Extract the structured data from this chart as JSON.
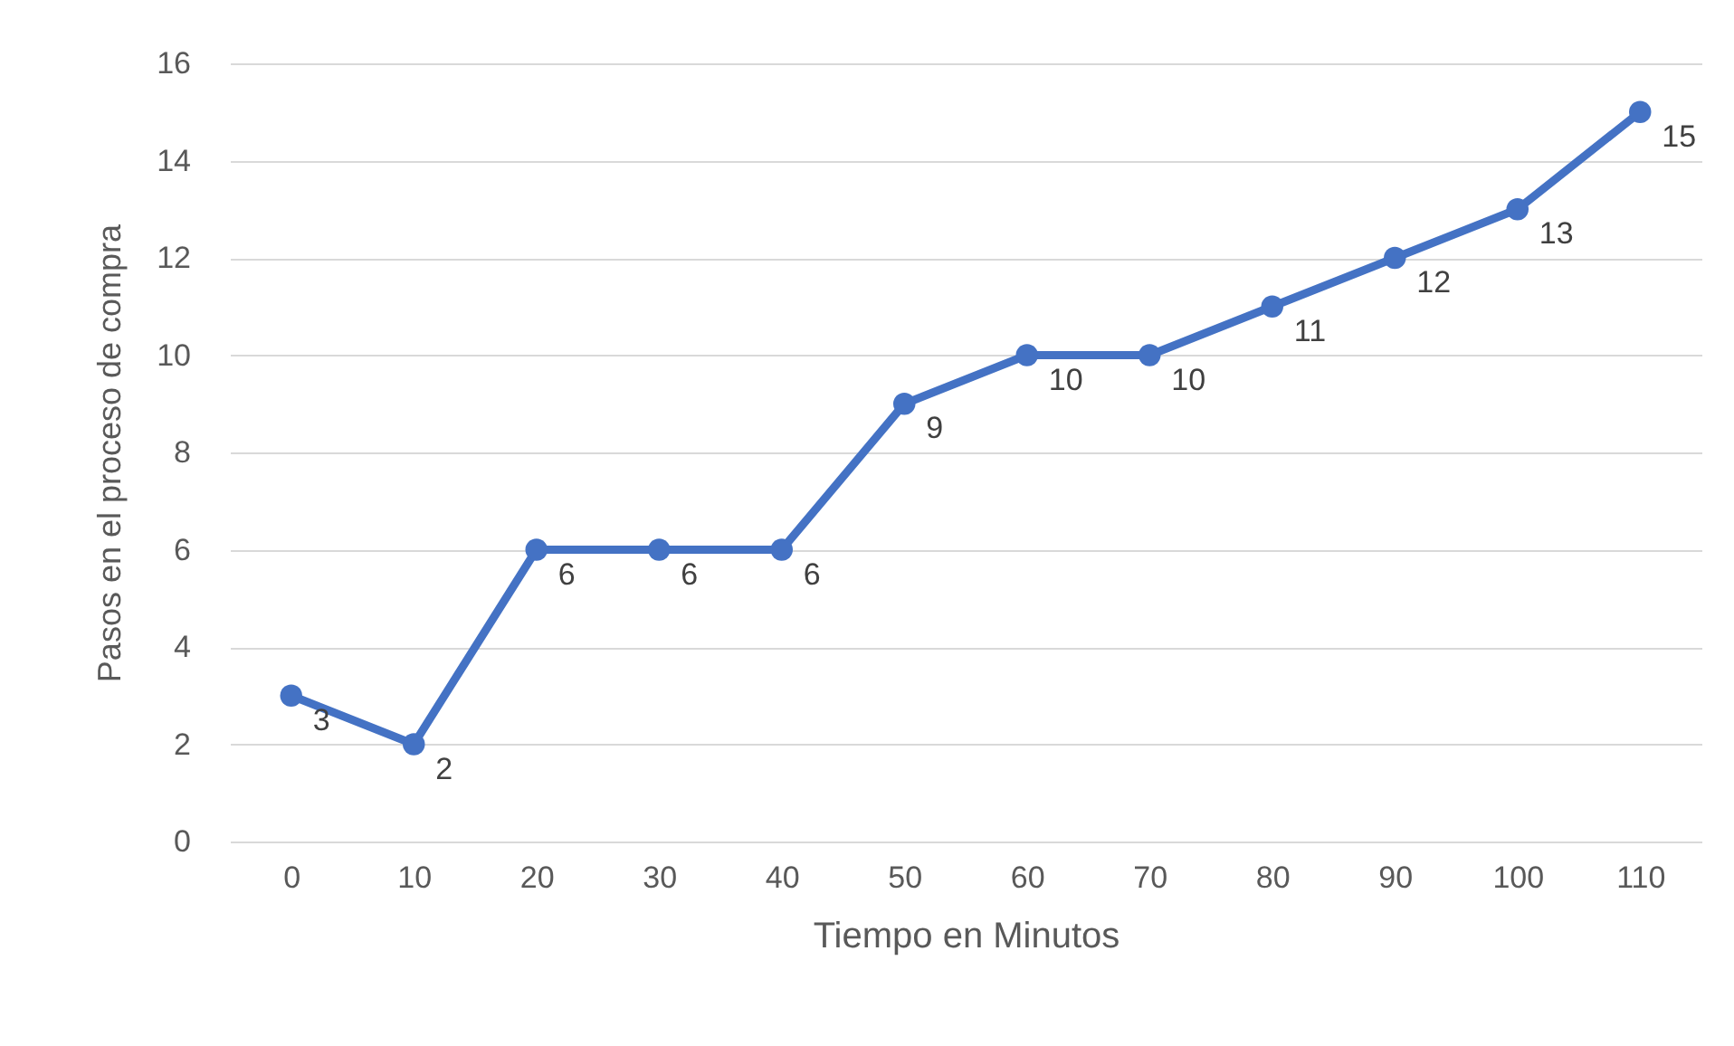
{
  "chart_data": {
    "type": "line",
    "xlabel": "Tiempo en Minutos",
    "ylabel": "Pasos en el proceso de compra",
    "categories": [
      "0",
      "10",
      "20",
      "30",
      "40",
      "50",
      "60",
      "70",
      "80",
      "90",
      "100",
      "110"
    ],
    "series": [
      {
        "color": "#4472c4",
        "values": [
          3,
          2,
          6,
          6,
          6,
          9,
          10,
          10,
          11,
          12,
          13,
          15
        ]
      }
    ],
    "ylim": [
      0,
      16
    ],
    "yticks": [
      0,
      2,
      4,
      6,
      8,
      10,
      12,
      14,
      16
    ],
    "grid": "y",
    "marker": "circle",
    "line_style": "solid",
    "data_labels": true
  }
}
